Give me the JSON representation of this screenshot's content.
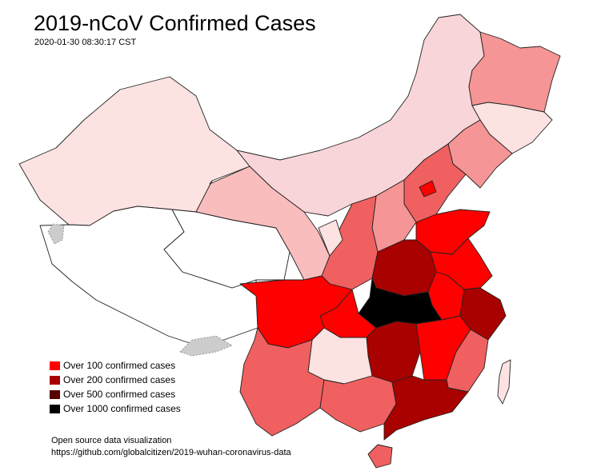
{
  "title": "2019-nCoV Confirmed Cases",
  "timestamp": "2020-01-30 08:30:17 CST",
  "legend": [
    {
      "label": "Over 100 confirmed cases",
      "color": "#ff0000"
    },
    {
      "label": "Over 200 confirmed cases",
      "color": "#a90000"
    },
    {
      "label": "Over 500 confirmed cases",
      "color": "#560000"
    },
    {
      "label": "Over 1000 confirmed cases",
      "color": "#000000"
    }
  ],
  "footer": {
    "line1": "Open source data visualization",
    "line2": "https://github.com/globalcitizen/2019-wuhan-coronavirus-data"
  },
  "colors": {
    "over_1000": "#000000",
    "over_500": "#560000",
    "over_200": "#a90000",
    "over_100": "#ff0000",
    "mid_high": "#f06060",
    "mid": "#f59595",
    "low": "#fabdbd",
    "very_low": "#fde2e2",
    "none": "#ffffff",
    "disputed": "#cccccc",
    "border": "#222222"
  }
}
